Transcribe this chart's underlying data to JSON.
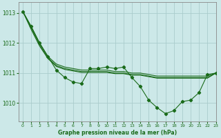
{
  "title": "Graphe pression niveau de la mer (hPa)",
  "bg_color": "#cce8e8",
  "grid_color": "#aacccc",
  "line_color": "#1a6b1a",
  "marker_color": "#1a6b1a",
  "xlim": [
    -0.5,
    23
  ],
  "ylim": [
    1009.4,
    1013.35
  ],
  "yticks": [
    1010,
    1011,
    1012,
    1013
  ],
  "xticks": [
    0,
    1,
    2,
    3,
    4,
    5,
    6,
    7,
    8,
    9,
    10,
    11,
    12,
    13,
    14,
    15,
    16,
    17,
    18,
    19,
    20,
    21,
    22,
    23
  ],
  "series1_smooth": {
    "x": [
      0,
      1,
      2,
      3,
      4,
      5,
      6,
      7,
      8,
      9,
      10,
      11,
      12,
      13,
      14,
      15,
      16,
      17,
      18,
      19,
      20,
      21,
      22,
      23
    ],
    "y": [
      1013.05,
      1012.55,
      1012.0,
      1011.55,
      1011.3,
      1011.2,
      1011.15,
      1011.1,
      1011.1,
      1011.1,
      1011.1,
      1011.05,
      1011.05,
      1011.0,
      1011.0,
      1010.95,
      1010.9,
      1010.9,
      1010.9,
      1010.9,
      1010.9,
      1010.9,
      1010.9,
      1011.0
    ]
  },
  "series2_smooth": {
    "x": [
      0,
      1,
      2,
      3,
      4,
      5,
      6,
      7,
      8,
      9,
      10,
      11,
      12,
      13,
      14,
      15,
      16,
      17,
      18,
      19,
      20,
      21,
      22,
      23
    ],
    "y": [
      1013.05,
      1012.5,
      1011.95,
      1011.5,
      1011.25,
      1011.15,
      1011.1,
      1011.05,
      1011.05,
      1011.05,
      1011.05,
      1011.0,
      1011.0,
      1010.95,
      1010.95,
      1010.9,
      1010.85,
      1010.85,
      1010.85,
      1010.85,
      1010.85,
      1010.85,
      1010.85,
      1011.0
    ]
  },
  "series3_smooth": {
    "x": [
      0,
      1,
      2,
      3,
      4,
      5,
      6,
      7,
      8,
      9,
      10,
      11,
      12,
      13,
      14,
      15,
      16,
      17,
      18,
      19,
      20,
      21,
      22,
      23
    ],
    "y": [
      1013.05,
      1012.45,
      1011.9,
      1011.48,
      1011.22,
      1011.12,
      1011.07,
      1011.02,
      1011.02,
      1011.02,
      1011.02,
      1010.98,
      1010.98,
      1010.93,
      1010.93,
      1010.88,
      1010.83,
      1010.83,
      1010.83,
      1010.83,
      1010.83,
      1010.83,
      1010.83,
      1011.0
    ]
  },
  "series_main": {
    "x": [
      0,
      1,
      2,
      3,
      4,
      5,
      6,
      7,
      8,
      9,
      10,
      11,
      12,
      13,
      14,
      15,
      16,
      17,
      18,
      19,
      20,
      21,
      22,
      23
    ],
    "y": [
      1013.05,
      1012.55,
      1012.0,
      1011.55,
      1011.1,
      1010.85,
      1010.7,
      1010.65,
      1011.15,
      1011.15,
      1011.2,
      1011.15,
      1011.2,
      1010.85,
      1010.55,
      1010.1,
      1009.85,
      1009.65,
      1009.75,
      1010.05,
      1010.1,
      1010.35,
      1010.95,
      1011.0
    ]
  }
}
